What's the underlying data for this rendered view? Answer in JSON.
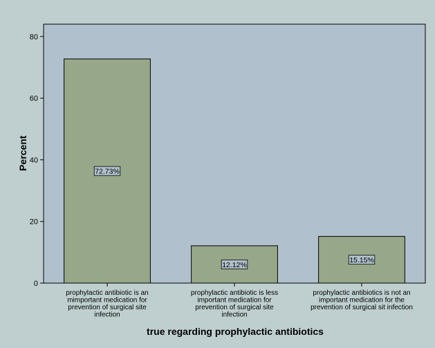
{
  "chart_data": {
    "type": "bar",
    "xlabel": "true regarding prophylactic antibiotics",
    "ylabel": "Percent",
    "ylim": [
      0,
      84
    ],
    "yticks": [
      0,
      20,
      40,
      60,
      80
    ],
    "grid": false,
    "categories": [
      [
        "prophylactic antibiotic is an",
        "mimportant medication for",
        "prevention of surgical site",
        "infection"
      ],
      [
        "prophylactic antibiotic is less",
        "important medication for",
        "prevention of surgical site",
        "infection"
      ],
      [
        "prophylactic antibiotics is not an",
        "important medication for the",
        "prevention of surgical sit infection"
      ]
    ],
    "values": [
      72.73,
      12.12,
      15.15
    ],
    "data_labels": [
      "72.73%",
      "12.12%",
      "15.15%"
    ],
    "colors": {
      "background": "#bfcfcf",
      "plot_area": "#b0c0cc",
      "bar": "#97a789",
      "label_box": "#b0c0cc"
    }
  }
}
